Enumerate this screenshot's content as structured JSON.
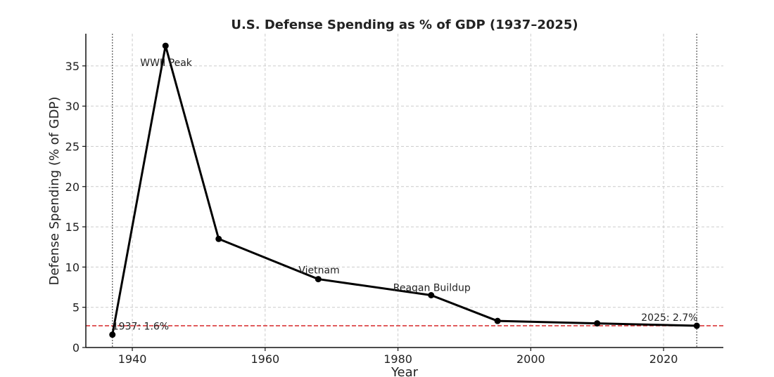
{
  "chart_data": {
    "type": "line",
    "title": "U.S. Defense Spending as % of GDP (1937–2025)",
    "xlabel": "Year",
    "ylabel": "Defense Spending (% of GDP)",
    "xlim": [
      1933,
      2029
    ],
    "ylim": [
      0,
      39
    ],
    "x_ticks": [
      1940,
      1960,
      1980,
      2000,
      2020
    ],
    "y_ticks": [
      0,
      5,
      10,
      15,
      20,
      25,
      30,
      35
    ],
    "grid": true,
    "series": [
      {
        "name": "Defense Spending",
        "color": "#000000",
        "x": [
          1937,
          1945,
          1953,
          1968,
          1985,
          1995,
          2010,
          2025
        ],
        "values": [
          1.6,
          37.5,
          13.5,
          8.5,
          6.5,
          3.3,
          3.0,
          2.7
        ]
      }
    ],
    "reference_line": {
      "value": 2.7,
      "color": "#d62728",
      "style": "dashed"
    },
    "vertical_lines": [
      1937,
      2025
    ],
    "annotations": [
      {
        "text": "WWII Peak",
        "x": 1945,
        "y": 37.5
      },
      {
        "text": "Vietnam",
        "x": 1968,
        "y": 8.5
      },
      {
        "text": "Reagan Buildup",
        "x": 1985,
        "y": 6.5
      },
      {
        "text": "1937: 1.6%",
        "x": 1937,
        "y": 1.6
      },
      {
        "text": "2025: 2.7%",
        "x": 2025,
        "y": 2.7
      }
    ]
  }
}
